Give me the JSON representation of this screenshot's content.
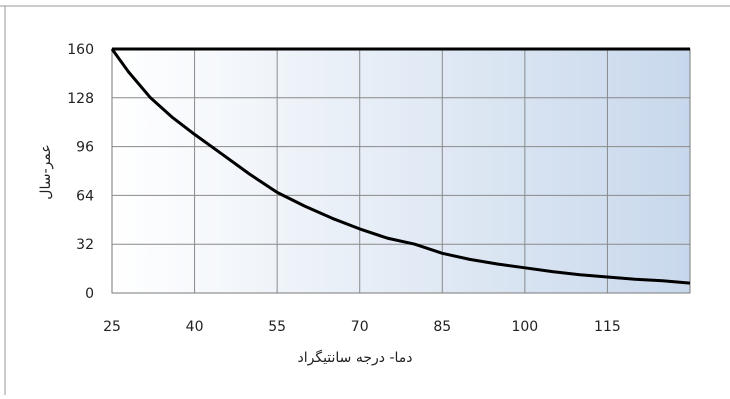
{
  "chart_data": {
    "type": "line",
    "title": "",
    "xlabel": "دما- درجه سانتیگراد",
    "ylabel": "عمر-سال",
    "xlim": [
      25,
      130
    ],
    "ylim": [
      0,
      160
    ],
    "xticks": [
      25,
      40,
      55,
      70,
      85,
      100,
      115
    ],
    "yticks": [
      0,
      32,
      64,
      96,
      128,
      160
    ],
    "grid": true,
    "legend": "none",
    "series": [
      {
        "x": [
          25,
          28,
          32,
          36,
          40,
          45,
          50,
          55,
          60,
          65,
          70,
          75,
          80,
          85,
          90,
          95,
          100,
          105,
          110,
          115,
          120,
          125,
          130
        ],
        "values": [
          160,
          145,
          128,
          115,
          104,
          91,
          78,
          66,
          57,
          49,
          42,
          36,
          32,
          26,
          22,
          19,
          16.5,
          14,
          12,
          10.5,
          9,
          8,
          6.5
        ]
      }
    ],
    "colors": {
      "plot_bg_left": "#ffffff",
      "plot_bg_right": "#c8d8ec",
      "grid": "#8a8a8a",
      "line": "#000000",
      "axis_text": "#222222"
    }
  }
}
